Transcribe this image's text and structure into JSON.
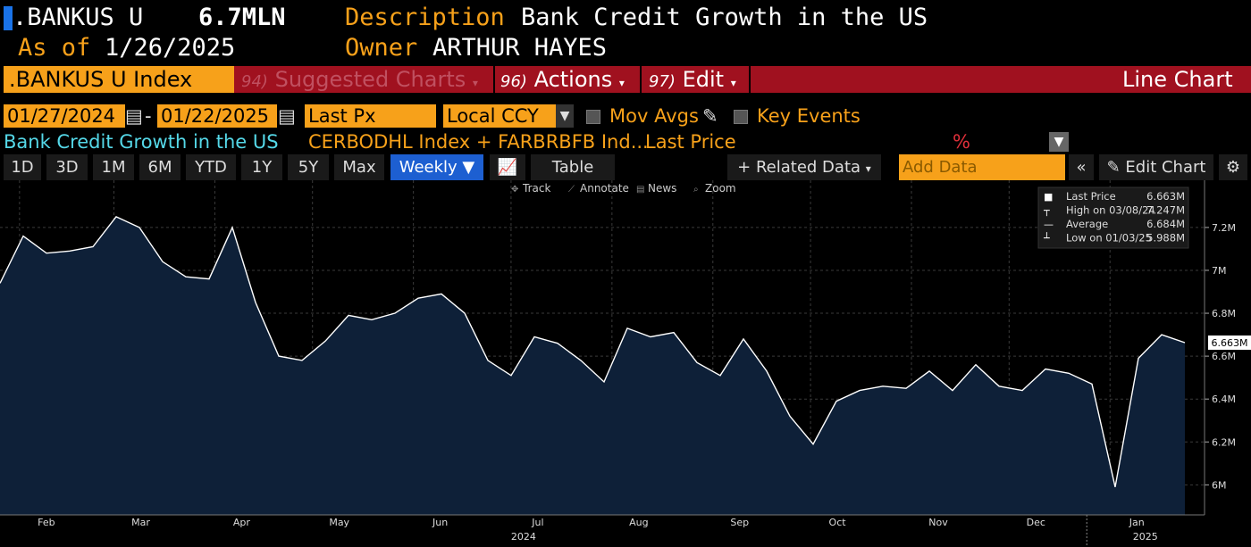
{
  "header": {
    "ticker": ".BANKUS U",
    "value": "6.7MLN",
    "desc_label": "Description",
    "desc_value": "Bank Credit Growth in the US",
    "asof_label": "As of",
    "asof_value": "1/26/2025",
    "owner_label": "Owner",
    "owner_value": "ARTHUR HAYES"
  },
  "function_bar": {
    "security": ".BANKUS U Index",
    "suggested_num": "94)",
    "suggested": "Suggested Charts",
    "actions_num": "96)",
    "actions": "Actions",
    "edit_num": "97)",
    "edit": "Edit",
    "chart_type": "Line Chart"
  },
  "controls": {
    "start_date": "01/27/2024",
    "dash": "-",
    "end_date": "01/22/2025",
    "field": "Last Px",
    "currency": "Local CCY",
    "mov_avgs": "Mov Avgs",
    "key_events": "Key Events"
  },
  "legend_row": {
    "name": "Bank Credit Growth in the US",
    "formula": "CERBODHL Index + FARBRBFB Ind...",
    "field": "Last Price",
    "pct": "%"
  },
  "toolbar": {
    "ranges": [
      "1D",
      "3D",
      "1M",
      "6M",
      "YTD",
      "1Y",
      "5Y",
      "Max"
    ],
    "frequency": "Weekly ▼",
    "table": "Table",
    "related": "+ Related Data",
    "add_data_placeholder": "Add Data",
    "edit_chart": "Edit Chart"
  },
  "chart_tools": [
    "Track",
    "Annotate",
    "News",
    "Zoom"
  ],
  "colors": {
    "accent_orange": "#f7a11a",
    "bar_red": "#a0111f",
    "series_fill": "#0e2038",
    "series_line": "#ffffff",
    "legend_cyan": "#55d8e8"
  },
  "chart_data": {
    "type": "area",
    "x_start": "2024-01-26",
    "x_end": "2025-01-24",
    "frequency": "weekly",
    "ylim": [
      5.86,
      7.42
    ],
    "yticks": [
      "6M",
      "6.2M",
      "6.4M",
      "6.6M",
      "6.8M",
      "7M",
      "7.2M"
    ],
    "ytick_values": [
      6.0,
      6.2,
      6.4,
      6.6,
      6.8,
      7.0,
      7.2
    ],
    "xticks": [
      "Feb",
      "Mar",
      "Apr",
      "May",
      "Jun",
      "Jul",
      "Aug",
      "Sep",
      "Oct",
      "Nov",
      "Dec",
      "Jan"
    ],
    "xtick_dates": [
      "2024-02-01",
      "2024-03-01",
      "2024-04-01",
      "2024-05-01",
      "2024-06-01",
      "2024-07-01",
      "2024-08-01",
      "2024-09-01",
      "2024-10-01",
      "2024-11-01",
      "2024-12-01",
      "2025-01-01"
    ],
    "year_labels": [
      "2024",
      "2025"
    ],
    "year_label_dates": [
      "2024-07-01",
      "2025-01-08"
    ],
    "grid": true,
    "series": [
      {
        "name": "Last Price",
        "values": [
          6.94,
          7.16,
          7.08,
          7.09,
          7.11,
          7.25,
          7.2,
          7.04,
          6.97,
          6.96,
          7.2,
          6.85,
          6.6,
          6.58,
          6.67,
          6.79,
          6.77,
          6.8,
          6.87,
          6.89,
          6.8,
          6.58,
          6.51,
          6.69,
          6.66,
          6.58,
          6.48,
          6.73,
          6.69,
          6.71,
          6.57,
          6.51,
          6.68,
          6.53,
          6.32,
          6.19,
          6.39,
          6.44,
          6.46,
          6.45,
          6.53,
          6.44,
          6.56,
          6.46,
          6.44,
          6.54,
          6.52,
          6.47,
          5.99,
          6.59,
          6.7,
          6.663
        ]
      }
    ],
    "legend_box": {
      "position": "top-right",
      "rows": [
        {
          "label": "Last Price",
          "value": "6.663M"
        },
        {
          "label": "High on 03/08/24",
          "value": "7.247M"
        },
        {
          "label": "Average",
          "value": "6.684M"
        },
        {
          "label": "Low on 01/03/25",
          "value": "5.988M"
        }
      ]
    },
    "last_value_tag": "6.663M"
  }
}
